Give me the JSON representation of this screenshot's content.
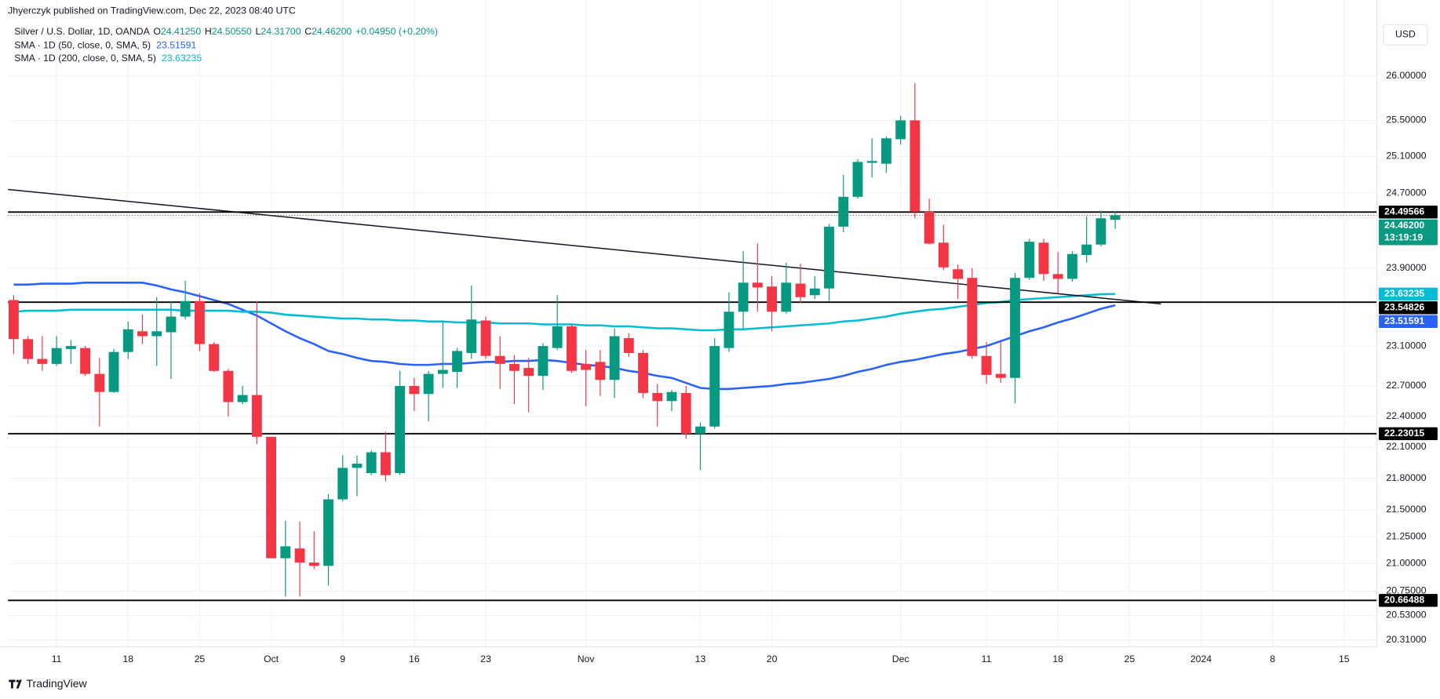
{
  "byline": "Jhyerczyk published on TradingView.com, Dec 22, 2023 08:40 UTC",
  "currency_button": "USD",
  "footer_logo": "TradingView",
  "chart_data": {
    "type": "candlestick",
    "title": "Silver / U.S. Dollar, 1D, OANDA",
    "ohlc_header": [
      {
        "key": "O",
        "value": "24.41250"
      },
      {
        "key": "H",
        "value": "24.50550"
      },
      {
        "key": "L",
        "value": "24.31700"
      },
      {
        "key": "C",
        "value": "24.46200"
      }
    ],
    "change_label": "+0.04950 (+0.20%)",
    "up_color": "#089981",
    "down_color": "#f23645",
    "log_scale": true,
    "grid": true,
    "xlim": [
      -0.4,
      95.3
    ],
    "ylim": [
      20.25,
      26.88
    ],
    "xticks": [
      {
        "value": 3,
        "label": "11"
      },
      {
        "value": 8,
        "label": "18"
      },
      {
        "value": 13,
        "label": "25"
      },
      {
        "value": 18,
        "label": "Oct"
      },
      {
        "value": 23,
        "label": "9"
      },
      {
        "value": 28,
        "label": "16"
      },
      {
        "value": 33,
        "label": "23"
      },
      {
        "value": 40,
        "label": "Nov"
      },
      {
        "value": 48,
        "label": "13"
      },
      {
        "value": 53,
        "label": "20"
      },
      {
        "value": 62,
        "label": "Dec"
      },
      {
        "value": 68,
        "label": "11"
      },
      {
        "value": 73,
        "label": "18"
      },
      {
        "value": 78,
        "label": "25"
      },
      {
        "value": 83,
        "label": "2024"
      },
      {
        "value": 88,
        "label": "8"
      },
      {
        "value": 93,
        "label": "15"
      }
    ],
    "yticks": [
      {
        "value": 26,
        "label": "26.00000"
      },
      {
        "value": 25.5,
        "label": "25.50000"
      },
      {
        "value": 25.1,
        "label": "25.10000"
      },
      {
        "value": 24.7,
        "label": "24.70000"
      },
      {
        "value": 23.9,
        "label": "23.90000"
      },
      {
        "value": 23.1,
        "label": "23.10000"
      },
      {
        "value": 22.7,
        "label": "22.70000"
      },
      {
        "value": 22.4,
        "label": "22.40000"
      },
      {
        "value": 22.1,
        "label": "22.10000"
      },
      {
        "value": 21.8,
        "label": "21.80000"
      },
      {
        "value": 21.5,
        "label": "21.50000"
      },
      {
        "value": 21.25,
        "label": "21.25000"
      },
      {
        "value": 21,
        "label": "21.00000"
      },
      {
        "value": 20.75,
        "label": "20.75000"
      },
      {
        "value": 20.53,
        "label": "20.53000"
      },
      {
        "value": 20.31,
        "label": "20.31000"
      }
    ],
    "open": [
      23.57,
      23.17,
      22.97,
      22.92,
      23.07,
      23.08,
      22.82,
      22.64,
      23.04,
      23.25,
      23.2,
      23.24,
      23.4,
      23.56,
      23.12,
      22.85,
      22.54,
      22.61,
      22.2,
      21.05,
      21.14,
      21.01,
      20.98,
      21.6,
      21.9,
      21.85,
      22.05,
      21.85,
      22.7,
      22.62,
      22.82,
      22.84,
      23.03,
      23.36,
      23.0,
      22.92,
      22.88,
      22.8,
      23.08,
      23.3,
      22.92,
      22.94,
      22.76,
      23.18,
      23.03,
      22.63,
      22.55,
      22.63,
      22.23,
      22.3,
      23.08,
      23.45,
      23.75,
      23.71,
      23.45,
      23.74,
      23.62,
      23.69,
      24.34,
      24.66,
      25.03,
      25.02,
      25.29,
      25.5,
      24.5,
      24.17,
      23.89,
      23.8,
      23.0,
      22.82,
      22.78,
      23.8,
      24.17,
      23.84,
      23.79,
      24.04,
      24.15,
      24.4125
    ],
    "high": [
      23.62,
      23.2,
      23.2,
      23.2,
      23.16,
      23.1,
      22.98,
      23.07,
      23.35,
      23.42,
      23.6,
      23.55,
      23.77,
      23.64,
      23.14,
      22.87,
      22.7,
      23.56,
      22.2,
      21.4,
      21.39,
      21.3,
      21.65,
      22.02,
      22.02,
      22.07,
      22.25,
      22.85,
      22.78,
      22.85,
      23.35,
      23.08,
      23.72,
      23.4,
      23.2,
      23.01,
      22.98,
      23.13,
      23.62,
      23.32,
      23.06,
      23.06,
      23.28,
      23.23,
      23.06,
      22.72,
      22.66,
      22.7,
      22.34,
      23.18,
      23.65,
      24.08,
      24.16,
      23.82,
      23.96,
      23.95,
      23.82,
      24.37,
      24.9,
      25.07,
      25.3,
      25.32,
      25.55,
      25.92,
      24.64,
      24.36,
      23.94,
      23.9,
      23.14,
      23.14,
      23.85,
      24.21,
      24.21,
      24.07,
      24.08,
      24.45,
      24.51,
      24.5055
    ],
    "low": [
      23.02,
      22.92,
      22.85,
      22.9,
      22.92,
      22.8,
      22.3,
      22.63,
      22.97,
      23.12,
      22.9,
      22.77,
      23.37,
      23.05,
      22.84,
      22.4,
      22.52,
      22.13,
      21.05,
      20.7,
      20.7,
      20.95,
      20.8,
      21.58,
      21.63,
      21.83,
      21.77,
      21.83,
      22.45,
      22.35,
      22.68,
      22.68,
      22.97,
      22.97,
      22.67,
      22.52,
      22.44,
      22.66,
      23.06,
      22.83,
      22.5,
      22.6,
      22.58,
      22.99,
      22.58,
      22.3,
      22.45,
      22.18,
      21.88,
      22.28,
      23.04,
      23.28,
      23.45,
      23.25,
      23.43,
      23.54,
      23.58,
      23.56,
      24.28,
      24.64,
      24.87,
      24.92,
      25.23,
      24.43,
      24.15,
      23.88,
      23.58,
      22.97,
      22.72,
      22.73,
      22.53,
      23.78,
      23.77,
      23.64,
      23.76,
      23.96,
      24.13,
      24.317
    ],
    "close": [
      23.17,
      22.97,
      22.92,
      23.08,
      23.1,
      22.82,
      22.64,
      23.04,
      23.27,
      23.2,
      23.25,
      23.4,
      23.56,
      23.12,
      22.85,
      22.54,
      22.61,
      22.2,
      21.05,
      21.16,
      21.01,
      20.98,
      21.6,
      21.9,
      21.94,
      22.05,
      21.83,
      22.7,
      22.62,
      22.82,
      22.86,
      23.05,
      23.37,
      23.0,
      22.92,
      22.85,
      22.8,
      23.1,
      23.3,
      22.85,
      22.86,
      22.76,
      23.2,
      23.03,
      22.63,
      22.55,
      22.64,
      22.23,
      22.3,
      23.1,
      23.45,
      23.75,
      23.7,
      23.45,
      23.75,
      23.6,
      23.69,
      24.34,
      24.66,
      25.04,
      25.05,
      25.3,
      25.5,
      24.5,
      24.16,
      23.91,
      23.79,
      23.0,
      22.81,
      22.78,
      23.8,
      24.18,
      23.84,
      23.79,
      24.05,
      24.15,
      24.43,
      24.462
    ],
    "last_price_label": "24.46200",
    "countdown": "13:19:19",
    "series": [
      {
        "name": "SMA · 1D (50, close, 0, SMA, 5)",
        "color": "#2962ff",
        "values": [
          23.73,
          23.73,
          23.74,
          23.74,
          23.74,
          23.75,
          23.75,
          23.75,
          23.75,
          23.75,
          23.72,
          23.68,
          23.65,
          23.61,
          23.57,
          23.53,
          23.47,
          23.41,
          23.33,
          23.25,
          23.18,
          23.12,
          23.05,
          23.02,
          22.98,
          22.95,
          22.94,
          22.92,
          22.91,
          22.91,
          22.92,
          22.92,
          22.93,
          22.94,
          22.94,
          22.95,
          22.95,
          22.96,
          22.95,
          22.93,
          22.91,
          22.9,
          22.88,
          22.85,
          22.83,
          22.8,
          22.78,
          22.73,
          22.68,
          22.67,
          22.67,
          22.68,
          22.69,
          22.7,
          22.72,
          22.73,
          22.75,
          22.77,
          22.8,
          22.84,
          22.87,
          22.91,
          22.94,
          22.96,
          22.99,
          23.02,
          23.04,
          23.07,
          23.1,
          23.15,
          23.2,
          23.25,
          23.29,
          23.34,
          23.38,
          23.43,
          23.48,
          23.51591
        ]
      },
      {
        "name": "SMA · 1D (200, close, 0, SMA, 5)",
        "color": "#00bcd4",
        "values": [
          23.45,
          23.46,
          23.46,
          23.46,
          23.47,
          23.47,
          23.47,
          23.47,
          23.47,
          23.47,
          23.47,
          23.47,
          23.46,
          23.46,
          23.46,
          23.46,
          23.45,
          23.45,
          23.44,
          23.42,
          23.41,
          23.4,
          23.39,
          23.38,
          23.38,
          23.37,
          23.37,
          23.36,
          23.36,
          23.35,
          23.35,
          23.34,
          23.34,
          23.34,
          23.33,
          23.33,
          23.33,
          23.32,
          23.32,
          23.32,
          23.31,
          23.31,
          23.3,
          23.3,
          23.29,
          23.28,
          23.28,
          23.27,
          23.26,
          23.26,
          23.27,
          23.27,
          23.28,
          23.29,
          23.3,
          23.31,
          23.32,
          23.33,
          23.35,
          23.36,
          23.38,
          23.4,
          23.43,
          23.45,
          23.47,
          23.48,
          23.5,
          23.52,
          23.54,
          23.55,
          23.57,
          23.58,
          23.59,
          23.6,
          23.61,
          23.62,
          23.63,
          23.63235
        ]
      }
    ],
    "levels": [
      24.49566,
      23.54826,
      22.23015,
      20.66488
    ],
    "trendline": {
      "x": [
        -0.4,
        80.2
      ],
      "values": [
        24.74,
        23.53
      ]
    }
  }
}
